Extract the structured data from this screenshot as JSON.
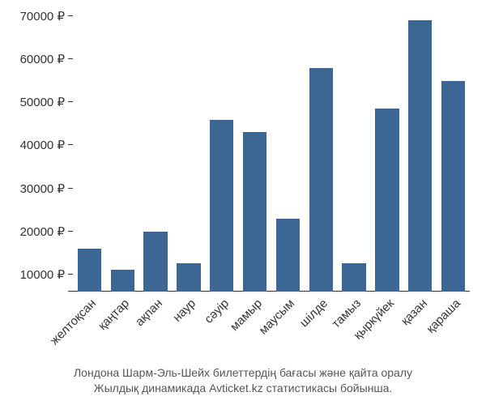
{
  "chart": {
    "type": "bar",
    "categories": [
      "желтоқсан",
      "қаңтар",
      "ақпан",
      "наур",
      "сәуір",
      "мамыр",
      "маусым",
      "шілде",
      "тамыз",
      "қыркүйек",
      "қазан",
      "қараша"
    ],
    "values": [
      16000,
      11000,
      20000,
      12500,
      46000,
      43000,
      23000,
      58000,
      12500,
      48500,
      69000,
      55000
    ],
    "bar_color": "#3c6694",
    "background_color": "#ffffff",
    "y_ticks": [
      10000,
      20000,
      30000,
      40000,
      50000,
      60000,
      70000
    ],
    "y_tick_labels": [
      "10000 ₽",
      "20000 ₽",
      "30000 ₽",
      "40000 ₽",
      "50000 ₽",
      "60000 ₽",
      "70000 ₽"
    ],
    "ylim": [
      6000,
      70000
    ],
    "label_fontsize": 15,
    "label_color": "#333333",
    "tick_color": "#333333",
    "bar_width": 0.72,
    "x_label_rotation": -45
  },
  "caption": {
    "line1": "Лондона Шарм-Эль-Шейх билеттердің бағасы және қайта оралу",
    "line2": "Жылдық динамикада Avticket.kz статистикасы бойынша.",
    "fontsize": 14,
    "color": "#555555"
  }
}
